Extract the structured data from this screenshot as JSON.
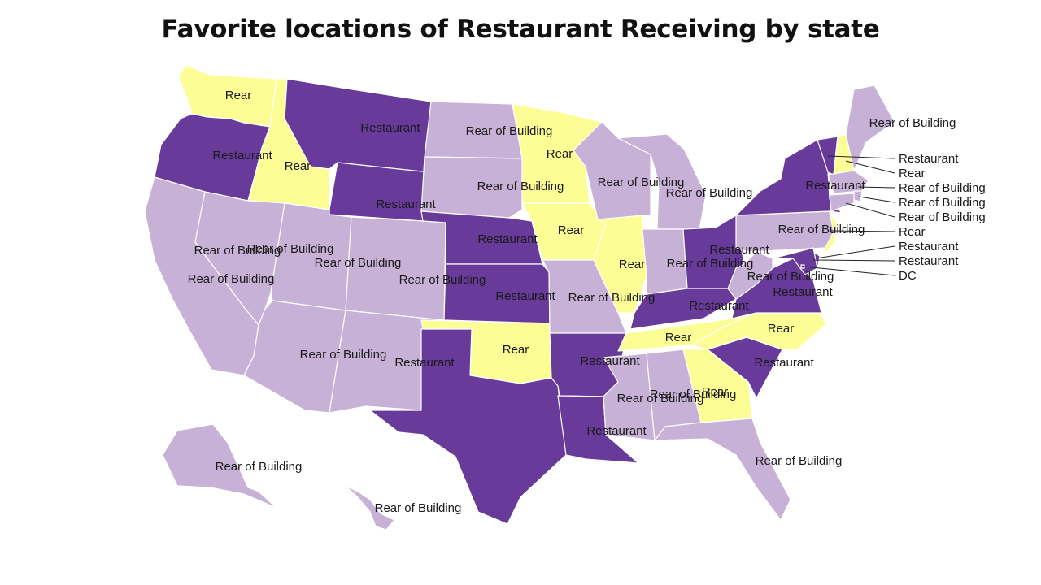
{
  "title": "Favorite locations of Restaurant Receiving by state",
  "legend_colors": {
    "Restaurant": "#683a9a",
    "Rear of Building": "#c7b1d6",
    "Rear": "#fdfd96"
  },
  "states": [
    {
      "id": "WA",
      "value": "Rear"
    },
    {
      "id": "OR",
      "value": "Restaurant"
    },
    {
      "id": "CA",
      "value": "Rear of Building"
    },
    {
      "id": "ID",
      "value": "Rear"
    },
    {
      "id": "NV",
      "value": "Rear of Building"
    },
    {
      "id": "MT",
      "value": "Restaurant"
    },
    {
      "id": "WY",
      "value": "Restaurant"
    },
    {
      "id": "UT",
      "value": "Rear of Building"
    },
    {
      "id": "AZ",
      "value": "Rear of Building"
    },
    {
      "id": "CO",
      "value": "Rear of Building"
    },
    {
      "id": "NM",
      "value": "Rear of Building"
    },
    {
      "id": "ND",
      "value": "Rear of Building"
    },
    {
      "id": "SD",
      "value": "Rear of Building"
    },
    {
      "id": "NE",
      "value": "Restaurant"
    },
    {
      "id": "KS",
      "value": "Restaurant"
    },
    {
      "id": "OK",
      "value": "Rear"
    },
    {
      "id": "TX",
      "value": "Restaurant"
    },
    {
      "id": "MN",
      "value": "Rear"
    },
    {
      "id": "IA",
      "value": "Rear"
    },
    {
      "id": "MO",
      "value": "Rear of Building"
    },
    {
      "id": "AR",
      "value": "Restaurant"
    },
    {
      "id": "LA",
      "value": "Restaurant"
    },
    {
      "id": "WI",
      "value": "Rear of Building"
    },
    {
      "id": "IL",
      "value": "Rear"
    },
    {
      "id": "MI",
      "value": "Rear of Building"
    },
    {
      "id": "IN",
      "value": "Rear of Building"
    },
    {
      "id": "OH",
      "value": "Restaurant"
    },
    {
      "id": "KY",
      "value": "Restaurant"
    },
    {
      "id": "TN",
      "value": "Rear"
    },
    {
      "id": "MS",
      "value": "Rear of Building"
    },
    {
      "id": "AL",
      "value": "Rear of Building"
    },
    {
      "id": "GA",
      "value": "Rear"
    },
    {
      "id": "FL",
      "value": "Rear of Building"
    },
    {
      "id": "SC",
      "value": "Restaurant"
    },
    {
      "id": "NC",
      "value": "Rear"
    },
    {
      "id": "VA",
      "value": "Restaurant"
    },
    {
      "id": "WV",
      "value": "Rear of Building"
    },
    {
      "id": "PA",
      "value": "Rear of Building"
    },
    {
      "id": "NY",
      "value": "Restaurant"
    },
    {
      "id": "NJ",
      "value": "Rear"
    },
    {
      "id": "DE",
      "value": "Restaurant"
    },
    {
      "id": "MD",
      "value": "Restaurant"
    },
    {
      "id": "DC",
      "value": "DC"
    },
    {
      "id": "VT",
      "value": "Restaurant"
    },
    {
      "id": "NH",
      "value": "Rear"
    },
    {
      "id": "ME",
      "value": "Rear of Building"
    },
    {
      "id": "MA",
      "value": "Rear of Building"
    },
    {
      "id": "RI",
      "value": "Rear of Building"
    },
    {
      "id": "CT",
      "value": "Rear of Building"
    },
    {
      "id": "AK",
      "value": "Rear of Building"
    },
    {
      "id": "HI",
      "value": "Rear of Building"
    }
  ],
  "callout_states": [
    "VT",
    "NH",
    "MA",
    "RI",
    "CT",
    "NJ",
    "DE",
    "MD",
    "DC"
  ]
}
